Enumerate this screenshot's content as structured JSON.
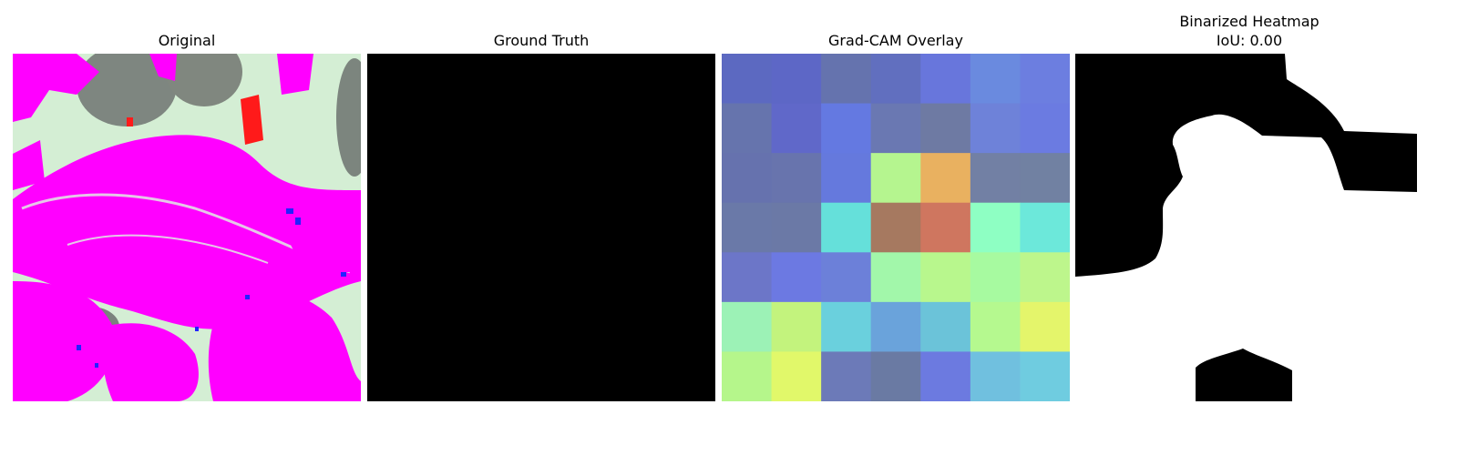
{
  "figure": {
    "panels": [
      {
        "title": "Original"
      },
      {
        "title": "Ground Truth"
      },
      {
        "title": "Grad-CAM Overlay"
      },
      {
        "title": "Binarized Heatmap",
        "subtitle": "IoU: 0.00"
      }
    ],
    "gradcam_grid_colors": [
      [
        "#5c69c1",
        "#5d67c6",
        "#6573ae",
        "#616fbf",
        "#6876dc",
        "#6a8adf",
        "#6c7ee0"
      ],
      [
        "#6674ad",
        "#6068c9",
        "#6479e1",
        "#6a78b2",
        "#6e7aa3",
        "#6e82d9",
        "#6b7be1"
      ],
      [
        "#6672ae",
        "#6874ad",
        "#6579dd",
        "#b5f58f",
        "#e9b160",
        "#7280a4",
        "#7181a2"
      ],
      [
        "#6a79a8",
        "#6b79a6",
        "#65e0da",
        "#a67960",
        "#cf765f",
        "#8effc3",
        "#6ce8da"
      ],
      [
        "#6c76c8",
        "#6c79e2",
        "#6c80d9",
        "#a2f7aa",
        "#b8f78d",
        "#a7faa0",
        "#bdf68c"
      ],
      [
        "#9cf2b6",
        "#c3f37d",
        "#6ad0dd",
        "#6aa3db",
        "#6bc3d9",
        "#b5f98f",
        "#e4f56b"
      ],
      [
        "#b5f68b",
        "#e1f86a",
        "#6c7ab8",
        "#6a7aa3",
        "#6c7ae0",
        "#70c0df",
        "#6fcce0"
      ]
    ],
    "mask_colors": {
      "foreground": "#ffffff",
      "background": "#000000"
    }
  }
}
